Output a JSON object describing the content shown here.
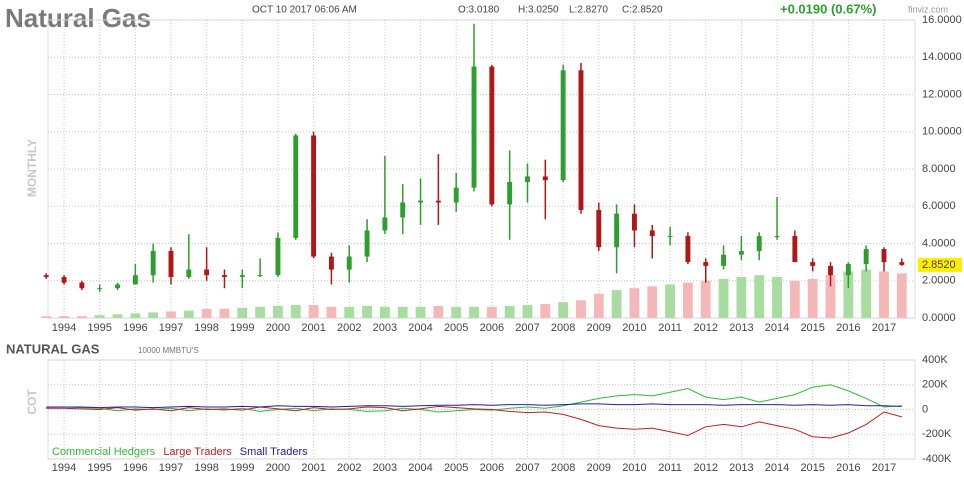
{
  "header": {
    "title": "Natural Gas",
    "date": "OCT 10 2017 06:06 AM",
    "open": "O:3.0180",
    "high": "H:3.0250",
    "low": "L:2.8270",
    "close": "C:2.8520",
    "change": "+0.0190 (0.67%)",
    "source": "finviz.com"
  },
  "chart_data": [
    {
      "type": "candlestick",
      "ylabel": "MONTHLY",
      "x": [
        1993.5,
        1994.0,
        1994.5,
        1995.0,
        1995.5,
        1996.0,
        1996.5,
        1997.0,
        1997.5,
        1998.0,
        1998.5,
        1999.0,
        1999.5,
        2000.0,
        2000.5,
        2001.0,
        2001.5,
        2002.0,
        2002.5,
        2003.0,
        2003.5,
        2004.0,
        2004.5,
        2005.0,
        2005.5,
        2006.0,
        2006.5,
        2007.0,
        2007.5,
        2008.0,
        2008.5,
        2009.0,
        2009.5,
        2010.0,
        2010.5,
        2011.0,
        2011.5,
        2012.0,
        2012.5,
        2013.0,
        2013.5,
        2014.0,
        2014.5,
        2015.0,
        2015.5,
        2016.0,
        2016.5,
        2017.0,
        2017.5
      ],
      "open": [
        2.3,
        2.2,
        1.9,
        1.6,
        1.6,
        1.8,
        2.3,
        3.6,
        2.2,
        2.6,
        2.3,
        2.2,
        2.3,
        2.3,
        4.3,
        9.8,
        3.3,
        2.6,
        3.3,
        4.7,
        5.4,
        6.2,
        6.3,
        6.2,
        7.0,
        13.5,
        6.1,
        7.3,
        7.6,
        7.4,
        13.3,
        5.8,
        3.8,
        5.6,
        4.7,
        4.4,
        4.4,
        3.0,
        2.8,
        3.4,
        3.6,
        4.4,
        4.4,
        3.0,
        2.8,
        2.3,
        2.9,
        3.7,
        3.0
      ],
      "high": [
        2.4,
        2.3,
        2.0,
        1.8,
        1.9,
        2.9,
        4.0,
        3.8,
        4.5,
        3.8,
        2.6,
        2.6,
        3.2,
        4.6,
        9.9,
        10.0,
        3.5,
        3.9,
        5.3,
        8.7,
        7.2,
        7.5,
        8.8,
        7.8,
        15.8,
        13.6,
        9.0,
        8.3,
        8.5,
        13.6,
        13.7,
        6.2,
        6.1,
        6.1,
        5.0,
        4.9,
        4.6,
        3.2,
        3.9,
        4.4,
        4.6,
        6.5,
        4.7,
        3.2,
        3.0,
        3.0,
        3.9,
        3.8,
        3.2
      ],
      "low": [
        2.1,
        1.8,
        1.5,
        1.4,
        1.5,
        1.8,
        1.9,
        1.8,
        2.1,
        2.0,
        1.6,
        1.6,
        2.2,
        2.2,
        4.2,
        3.2,
        1.8,
        1.9,
        3.0,
        4.5,
        4.5,
        5.0,
        5.0,
        5.7,
        6.8,
        6.0,
        4.2,
        6.2,
        5.3,
        7.3,
        5.6,
        3.6,
        2.4,
        3.8,
        3.2,
        3.9,
        2.9,
        1.9,
        2.6,
        3.1,
        3.1,
        4.2,
        3.0,
        2.5,
        1.7,
        1.6,
        2.5,
        2.5,
        2.8
      ],
      "close": [
        2.2,
        1.9,
        1.6,
        1.6,
        1.8,
        2.3,
        3.6,
        2.2,
        2.6,
        2.3,
        2.2,
        2.3,
        2.3,
        4.3,
        9.8,
        3.3,
        2.6,
        3.3,
        4.7,
        5.4,
        6.2,
        6.3,
        6.2,
        7.0,
        13.5,
        6.1,
        7.3,
        7.6,
        7.4,
        13.3,
        5.8,
        3.8,
        5.6,
        4.7,
        4.4,
        4.4,
        3.0,
        2.8,
        3.4,
        3.6,
        4.4,
        4.4,
        3.0,
        2.8,
        2.3,
        2.9,
        3.7,
        3.0,
        2.852
      ],
      "volume": [
        0.1,
        0.1,
        0.1,
        0.15,
        0.2,
        0.25,
        0.3,
        0.35,
        0.4,
        0.5,
        0.5,
        0.55,
        0.6,
        0.65,
        0.7,
        0.7,
        0.6,
        0.6,
        0.65,
        0.6,
        0.6,
        0.6,
        0.65,
        0.6,
        0.6,
        0.6,
        0.65,
        0.7,
        0.75,
        0.85,
        0.95,
        1.3,
        1.5,
        1.6,
        1.7,
        1.8,
        1.9,
        2.0,
        2.1,
        2.2,
        2.3,
        2.2,
        2.0,
        2.1,
        2.3,
        2.5,
        2.6,
        2.5,
        2.4
      ],
      "up_color": "#2e9e2e",
      "down_color": "#b01818",
      "volume_up_color": "#a8dca0",
      "volume_down_color": "#f4b8b8",
      "last_price": {
        "value": 2.852,
        "label": "2.8520"
      },
      "xlim": [
        1993.55,
        2017.87
      ],
      "xticks": [
        1994,
        1995,
        1996,
        1997,
        1998,
        1999,
        2000,
        2001,
        2002,
        2003,
        2004,
        2005,
        2006,
        2007,
        2008,
        2009,
        2010,
        2011,
        2012,
        2013,
        2014,
        2015,
        2016,
        2017
      ],
      "ylim": [
        0,
        16
      ],
      "yticks": [
        {
          "value": 0,
          "label": "0.0000"
        },
        {
          "value": 2,
          "label": "2.0000"
        },
        {
          "value": 4,
          "label": "4.0000"
        },
        {
          "value": 6,
          "label": "6.0000"
        },
        {
          "value": 8,
          "label": "8.0000"
        },
        {
          "value": 10,
          "label": "10.0000"
        },
        {
          "value": 12,
          "label": "12.0000"
        },
        {
          "value": 14,
          "label": "14.0000"
        },
        {
          "value": 16,
          "label": "16.0000"
        }
      ],
      "grid": true
    },
    {
      "type": "line",
      "title": "NATURAL GAS",
      "subtitle": "10000 MMBTU'S",
      "ylabel": "COT",
      "x": [
        1993.5,
        1994.0,
        1994.5,
        1995.0,
        1995.5,
        1996.0,
        1996.5,
        1997.0,
        1997.5,
        1998.0,
        1998.5,
        1999.0,
        1999.5,
        2000.0,
        2000.5,
        2001.0,
        2001.5,
        2002.0,
        2002.5,
        2003.0,
        2003.5,
        2004.0,
        2004.5,
        2005.0,
        2005.5,
        2006.0,
        2006.5,
        2007.0,
        2007.5,
        2008.0,
        2008.5,
        2009.0,
        2009.5,
        2010.0,
        2010.5,
        2011.0,
        2011.5,
        2012.0,
        2012.5,
        2013.0,
        2013.5,
        2014.0,
        2014.5,
        2015.0,
        2015.5,
        2016.0,
        2016.5,
        2017.0,
        2017.5
      ],
      "series": [
        {
          "name": "Commercial Hedgers",
          "color": "#33bb33",
          "values": [
            20000,
            20000,
            15000,
            10000,
            -10000,
            5000,
            0,
            10000,
            -10000,
            5000,
            -5000,
            10000,
            -15000,
            0,
            10000,
            -10000,
            5000,
            0,
            -15000,
            -10000,
            10000,
            0,
            -20000,
            -10000,
            0,
            -5000,
            10000,
            20000,
            10000,
            30000,
            60000,
            90000,
            110000,
            120000,
            110000,
            140000,
            170000,
            100000,
            80000,
            100000,
            60000,
            90000,
            120000,
            180000,
            200000,
            150000,
            90000,
            20000,
            30000
          ]
        },
        {
          "name": "Large Traders",
          "color": "#c02020",
          "values": [
            10000,
            10000,
            5000,
            0,
            15000,
            -5000,
            5000,
            -10000,
            15000,
            0,
            5000,
            -5000,
            20000,
            5000,
            -10000,
            15000,
            0,
            5000,
            20000,
            15000,
            -10000,
            5000,
            25000,
            15000,
            5000,
            0,
            -15000,
            -25000,
            -20000,
            -40000,
            -80000,
            -130000,
            -150000,
            -160000,
            -150000,
            -180000,
            -210000,
            -140000,
            -120000,
            -140000,
            -100000,
            -130000,
            -160000,
            -220000,
            -230000,
            -190000,
            -120000,
            -20000,
            -60000
          ]
        },
        {
          "name": "Small Traders",
          "color": "#2020a0",
          "values": [
            20000,
            20000,
            20000,
            15000,
            20000,
            20000,
            15000,
            20000,
            25000,
            20000,
            20000,
            25000,
            20000,
            30000,
            25000,
            25000,
            20000,
            25000,
            30000,
            30000,
            25000,
            30000,
            35000,
            35000,
            40000,
            35000,
            40000,
            40000,
            35000,
            40000,
            45000,
            45000,
            40000,
            40000,
            45000,
            40000,
            40000,
            40000,
            35000,
            40000,
            40000,
            40000,
            35000,
            40000,
            35000,
            40000,
            30000,
            30000,
            25000
          ]
        }
      ],
      "xlim": [
        1993.55,
        2017.87
      ],
      "xticks": [
        1994,
        1995,
        1996,
        1997,
        1998,
        1999,
        2000,
        2001,
        2002,
        2003,
        2004,
        2005,
        2006,
        2007,
        2008,
        2009,
        2010,
        2011,
        2012,
        2013,
        2014,
        2015,
        2016,
        2017
      ],
      "ylim": [
        -400000,
        400000
      ],
      "yticks": [
        {
          "value": -400000,
          "label": "-400K"
        },
        {
          "value": -200000,
          "label": "-200K"
        },
        0,
        {
          "value": 200000,
          "label": "200K"
        },
        {
          "value": 400000,
          "label": "400K"
        }
      ],
      "grid": true
    }
  ]
}
